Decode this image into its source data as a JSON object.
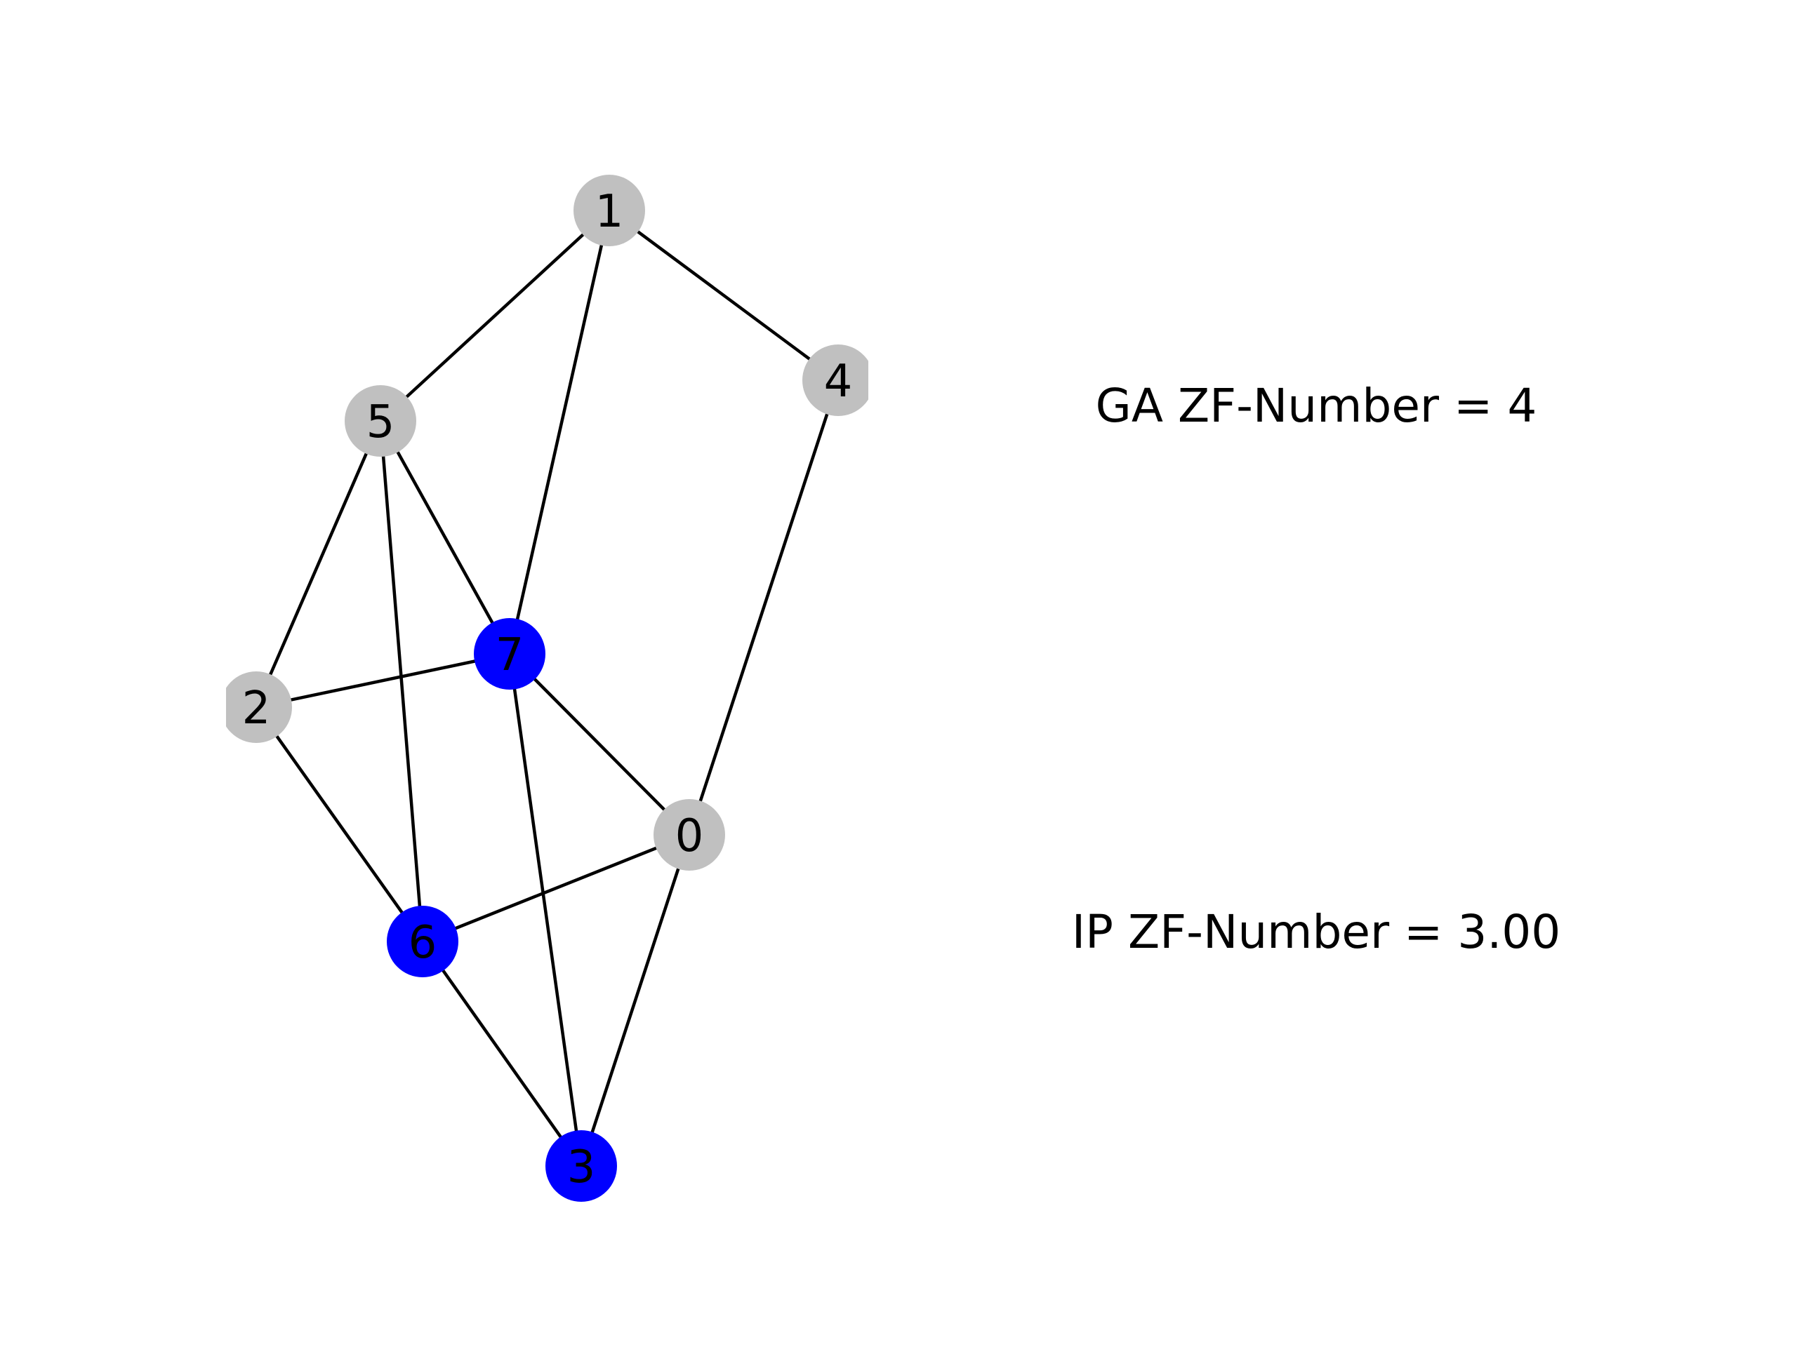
{
  "graph": {
    "nodes": [
      {
        "id": "0",
        "label": "0",
        "color": "#c0c0c0",
        "highlighted": false
      },
      {
        "id": "1",
        "label": "1",
        "color": "#c0c0c0",
        "highlighted": false
      },
      {
        "id": "2",
        "label": "2",
        "color": "#c0c0c0",
        "highlighted": false
      },
      {
        "id": "3",
        "label": "3",
        "color": "#0000ff",
        "highlighted": true
      },
      {
        "id": "4",
        "label": "4",
        "color": "#c0c0c0",
        "highlighted": false
      },
      {
        "id": "5",
        "label": "5",
        "color": "#c0c0c0",
        "highlighted": false
      },
      {
        "id": "6",
        "label": "6",
        "color": "#0000ff",
        "highlighted": true
      },
      {
        "id": "7",
        "label": "7",
        "color": "#0000ff",
        "highlighted": true
      }
    ],
    "edges": [
      [
        "1",
        "5"
      ],
      [
        "1",
        "7"
      ],
      [
        "1",
        "4"
      ],
      [
        "5",
        "7"
      ],
      [
        "5",
        "2"
      ],
      [
        "5",
        "6"
      ],
      [
        "4",
        "0"
      ],
      [
        "2",
        "7"
      ],
      [
        "2",
        "6"
      ],
      [
        "7",
        "0"
      ],
      [
        "7",
        "3"
      ],
      [
        "0",
        "6"
      ],
      [
        "0",
        "3"
      ],
      [
        "6",
        "3"
      ]
    ]
  },
  "annotations": {
    "ga_text": "GA ZF-Number = 4",
    "ip_text": "IP ZF-Number = 3.00"
  },
  "colors": {
    "edge": "#000000",
    "default_node": "#c0c0c0",
    "zero_forcing_node": "#0000ff"
  }
}
